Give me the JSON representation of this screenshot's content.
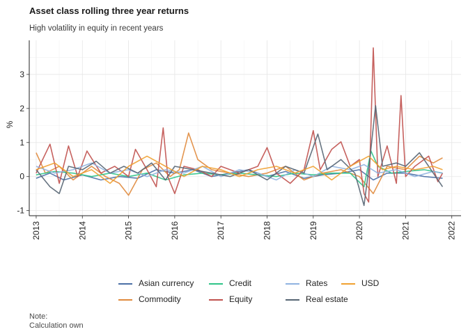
{
  "chart_data": {
    "type": "line",
    "title": "Asset class rolling three year returns",
    "subtitle": "High volatility in equity in recent years",
    "xlabel": "",
    "ylabel": "%",
    "xlim": [
      2012.85,
      2022.2
    ],
    "ylim": [
      -1.15,
      4.0
    ],
    "x_ticks": [
      "2013",
      "2014",
      "2015",
      "2016",
      "2017",
      "2018",
      "2019",
      "2020",
      "2021",
      "2022"
    ],
    "y_ticks": [
      "-1",
      "0",
      "1",
      "2",
      "3"
    ],
    "grid": true,
    "legend_position": "bottom",
    "series": [
      {
        "name": "Asian currency",
        "color": "#4a6fa5",
        "points": [
          [
            2013.0,
            -0.05
          ],
          [
            2013.3,
            0.1
          ],
          [
            2013.6,
            -0.1
          ],
          [
            2014.0,
            0.05
          ],
          [
            2014.4,
            -0.1
          ],
          [
            2014.8,
            0.0
          ],
          [
            2015.2,
            -0.05
          ],
          [
            2015.6,
            0.2
          ],
          [
            2016.0,
            0.1
          ],
          [
            2016.4,
            0.2
          ],
          [
            2016.8,
            0.0
          ],
          [
            2017.2,
            0.1
          ],
          [
            2017.6,
            0.2
          ],
          [
            2018.0,
            0.0
          ],
          [
            2018.4,
            0.15
          ],
          [
            2018.8,
            -0.05
          ],
          [
            2019.2,
            0.05
          ],
          [
            2019.6,
            0.1
          ],
          [
            2020.0,
            0.2
          ],
          [
            2020.3,
            -0.1
          ],
          [
            2020.6,
            0.1
          ],
          [
            2021.0,
            0.1
          ],
          [
            2021.4,
            0.0
          ],
          [
            2021.8,
            -0.05
          ]
        ]
      },
      {
        "name": "Commodity",
        "color": "#e08a3c",
        "points": [
          [
            2013.0,
            0.7
          ],
          [
            2013.2,
            0.1
          ],
          [
            2013.5,
            0.3
          ],
          [
            2013.8,
            -0.1
          ],
          [
            2014.2,
            0.3
          ],
          [
            2014.5,
            0.0
          ],
          [
            2014.8,
            -0.2
          ],
          [
            2015.0,
            -0.55
          ],
          [
            2015.3,
            0.2
          ],
          [
            2015.6,
            0.4
          ],
          [
            2015.9,
            0.0
          ],
          [
            2016.1,
            0.2
          ],
          [
            2016.3,
            1.28
          ],
          [
            2016.5,
            0.5
          ],
          [
            2016.8,
            0.2
          ],
          [
            2017.2,
            0.1
          ],
          [
            2017.6,
            0.0
          ],
          [
            2018.0,
            0.1
          ],
          [
            2018.4,
            0.3
          ],
          [
            2018.8,
            -0.1
          ],
          [
            2019.2,
            0.1
          ],
          [
            2019.6,
            0.2
          ],
          [
            2020.0,
            0.0
          ],
          [
            2020.3,
            -0.5
          ],
          [
            2020.6,
            0.3
          ],
          [
            2021.0,
            0.2
          ],
          [
            2021.3,
            0.6
          ],
          [
            2021.6,
            0.4
          ],
          [
            2021.8,
            0.55
          ]
        ]
      },
      {
        "name": "Credit",
        "color": "#2ec488",
        "points": [
          [
            2013.0,
            0.05
          ],
          [
            2013.4,
            0.15
          ],
          [
            2013.8,
            0.1
          ],
          [
            2014.2,
            0.0
          ],
          [
            2014.6,
            0.1
          ],
          [
            2015.0,
            0.0
          ],
          [
            2015.4,
            0.1
          ],
          [
            2015.8,
            -0.1
          ],
          [
            2016.2,
            0.05
          ],
          [
            2016.6,
            0.1
          ],
          [
            2017.0,
            0.05
          ],
          [
            2017.4,
            0.1
          ],
          [
            2017.8,
            0.05
          ],
          [
            2018.2,
            0.0
          ],
          [
            2018.6,
            0.1
          ],
          [
            2019.0,
            0.05
          ],
          [
            2019.4,
            0.1
          ],
          [
            2019.8,
            0.1
          ],
          [
            2020.1,
            -0.3
          ],
          [
            2020.25,
            0.75
          ],
          [
            2020.4,
            0.3
          ],
          [
            2020.7,
            0.1
          ],
          [
            2021.0,
            0.15
          ],
          [
            2021.4,
            0.2
          ],
          [
            2021.8,
            0.1
          ]
        ]
      },
      {
        "name": "Equity",
        "color": "#c0504d",
        "points": [
          [
            2013.0,
            0.1
          ],
          [
            2013.3,
            0.95
          ],
          [
            2013.5,
            -0.2
          ],
          [
            2013.7,
            0.9
          ],
          [
            2013.9,
            0.0
          ],
          [
            2014.1,
            0.75
          ],
          [
            2014.4,
            0.1
          ],
          [
            2014.7,
            0.3
          ],
          [
            2015.0,
            0.0
          ],
          [
            2015.15,
            0.8
          ],
          [
            2015.4,
            0.2
          ],
          [
            2015.6,
            -0.3
          ],
          [
            2015.75,
            1.43
          ],
          [
            2015.85,
            0.0
          ],
          [
            2016.0,
            -0.5
          ],
          [
            2016.2,
            0.3
          ],
          [
            2016.5,
            0.2
          ],
          [
            2016.8,
            0.0
          ],
          [
            2017.0,
            0.3
          ],
          [
            2017.4,
            0.1
          ],
          [
            2017.8,
            0.3
          ],
          [
            2018.0,
            0.85
          ],
          [
            2018.2,
            0.1
          ],
          [
            2018.5,
            -0.2
          ],
          [
            2018.8,
            0.2
          ],
          [
            2019.0,
            1.35
          ],
          [
            2019.15,
            0.2
          ],
          [
            2019.4,
            0.8
          ],
          [
            2019.6,
            1.02
          ],
          [
            2019.8,
            0.3
          ],
          [
            2020.0,
            0.5
          ],
          [
            2020.1,
            -0.5
          ],
          [
            2020.2,
            -0.75
          ],
          [
            2020.3,
            3.78
          ],
          [
            2020.4,
            0.0
          ],
          [
            2020.6,
            0.9
          ],
          [
            2020.8,
            -0.2
          ],
          [
            2020.9,
            2.38
          ],
          [
            2021.0,
            0.0
          ],
          [
            2021.2,
            0.3
          ],
          [
            2021.5,
            0.6
          ],
          [
            2021.7,
            -0.15
          ],
          [
            2021.8,
            0.1
          ]
        ]
      },
      {
        "name": "Rates",
        "color": "#8fb2e0",
        "points": [
          [
            2013.0,
            0.3
          ],
          [
            2013.4,
            0.1
          ],
          [
            2013.8,
            0.2
          ],
          [
            2014.2,
            0.4
          ],
          [
            2014.6,
            0.1
          ],
          [
            2015.0,
            0.2
          ],
          [
            2015.4,
            0.0
          ],
          [
            2015.8,
            0.2
          ],
          [
            2016.2,
            0.1
          ],
          [
            2016.6,
            0.3
          ],
          [
            2017.0,
            0.0
          ],
          [
            2017.4,
            0.2
          ],
          [
            2017.8,
            0.1
          ],
          [
            2018.2,
            -0.1
          ],
          [
            2018.6,
            0.2
          ],
          [
            2019.0,
            0.0
          ],
          [
            2019.4,
            0.3
          ],
          [
            2019.8,
            0.2
          ],
          [
            2020.1,
            0.35
          ],
          [
            2020.4,
            0.1
          ],
          [
            2020.8,
            0.2
          ],
          [
            2021.2,
            0.0
          ],
          [
            2021.6,
            0.15
          ],
          [
            2021.8,
            0.1
          ]
        ]
      },
      {
        "name": "Real estate",
        "color": "#566573",
        "points": [
          [
            2013.0,
            0.2
          ],
          [
            2013.3,
            -0.3
          ],
          [
            2013.5,
            -0.5
          ],
          [
            2013.7,
            0.3
          ],
          [
            2014.0,
            0.2
          ],
          [
            2014.3,
            0.45
          ],
          [
            2014.6,
            0.1
          ],
          [
            2014.9,
            0.3
          ],
          [
            2015.2,
            0.1
          ],
          [
            2015.5,
            0.4
          ],
          [
            2015.8,
            -0.1
          ],
          [
            2016.0,
            0.3
          ],
          [
            2016.4,
            0.2
          ],
          [
            2016.8,
            0.1
          ],
          [
            2017.2,
            0.0
          ],
          [
            2017.6,
            0.2
          ],
          [
            2018.0,
            -0.1
          ],
          [
            2018.4,
            0.3
          ],
          [
            2018.8,
            0.1
          ],
          [
            2019.1,
            1.25
          ],
          [
            2019.3,
            0.2
          ],
          [
            2019.6,
            0.5
          ],
          [
            2019.9,
            0.1
          ],
          [
            2020.1,
            -0.85
          ],
          [
            2020.2,
            0.2
          ],
          [
            2020.35,
            2.08
          ],
          [
            2020.5,
            0.3
          ],
          [
            2020.8,
            0.4
          ],
          [
            2021.0,
            0.3
          ],
          [
            2021.3,
            0.7
          ],
          [
            2021.6,
            0.1
          ],
          [
            2021.8,
            -0.3
          ]
        ]
      },
      {
        "name": "USD",
        "color": "#f0a030",
        "points": [
          [
            2013.0,
            0.2
          ],
          [
            2013.4,
            0.4
          ],
          [
            2013.8,
            0.0
          ],
          [
            2014.2,
            0.2
          ],
          [
            2014.6,
            -0.2
          ],
          [
            2015.0,
            0.3
          ],
          [
            2015.4,
            0.6
          ],
          [
            2015.8,
            0.3
          ],
          [
            2016.2,
            0.0
          ],
          [
            2016.6,
            0.3
          ],
          [
            2017.0,
            0.2
          ],
          [
            2017.4,
            0.0
          ],
          [
            2017.8,
            0.2
          ],
          [
            2018.2,
            0.3
          ],
          [
            2018.6,
            0.1
          ],
          [
            2019.0,
            0.3
          ],
          [
            2019.4,
            -0.1
          ],
          [
            2019.8,
            0.3
          ],
          [
            2020.2,
            0.6
          ],
          [
            2020.5,
            0.2
          ],
          [
            2020.8,
            0.3
          ],
          [
            2021.2,
            0.2
          ],
          [
            2021.6,
            0.3
          ],
          [
            2021.8,
            0.2
          ]
        ]
      }
    ]
  },
  "legend_items": [
    "Asian currency",
    "Credit",
    "Rates",
    "USD",
    "Commodity",
    "Equity",
    "Real estate"
  ],
  "note": {
    "label": "Note:",
    "text": "Calculation own"
  }
}
